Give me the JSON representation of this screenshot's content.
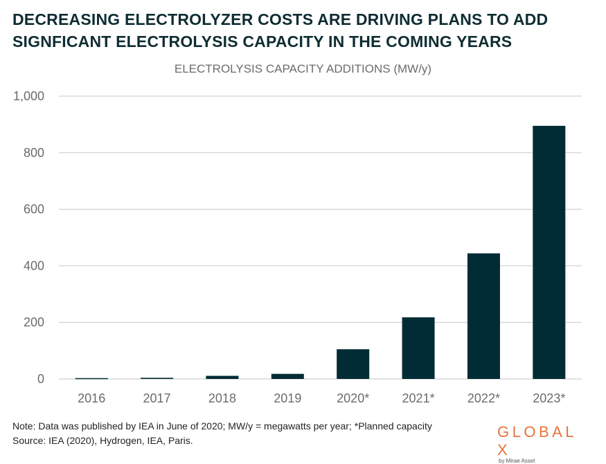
{
  "title": "DECREASING ELECTROLYZER COSTS ARE DRIVING PLANS TO ADD SIGNFICANT ELECTROLYSIS CAPACITY IN THE COMING YEARS",
  "footer": {
    "note": "Note: Data was published by IEA in June of 2020; MW/y = megawatts per year; *Planned capacity",
    "source": "Source: IEA (2020), Hydrogen, IEA, Paris."
  },
  "logo": {
    "text": "GLOBAL X",
    "sub": "by Mirae Asset",
    "color": "#e6743a"
  },
  "chart_data": {
    "type": "bar",
    "title": "ELECTROLYSIS CAPACITY ADDITIONS (MW/y)",
    "xlabel": "",
    "ylabel": "",
    "categories": [
      "2016",
      "2017",
      "2018",
      "2019",
      "2020*",
      "2021*",
      "2022*",
      "2023*"
    ],
    "values": [
      3,
      4,
      11,
      18,
      105,
      218,
      444,
      895
    ],
    "ylim": [
      0,
      1000
    ],
    "yticks": [
      0,
      200,
      400,
      600,
      800,
      1000
    ],
    "ytick_labels": [
      "0",
      "200",
      "400",
      "600",
      "800",
      "1,000"
    ],
    "grid": true,
    "bar_color": "#022c35",
    "grid_color": "#d9d9d9"
  }
}
